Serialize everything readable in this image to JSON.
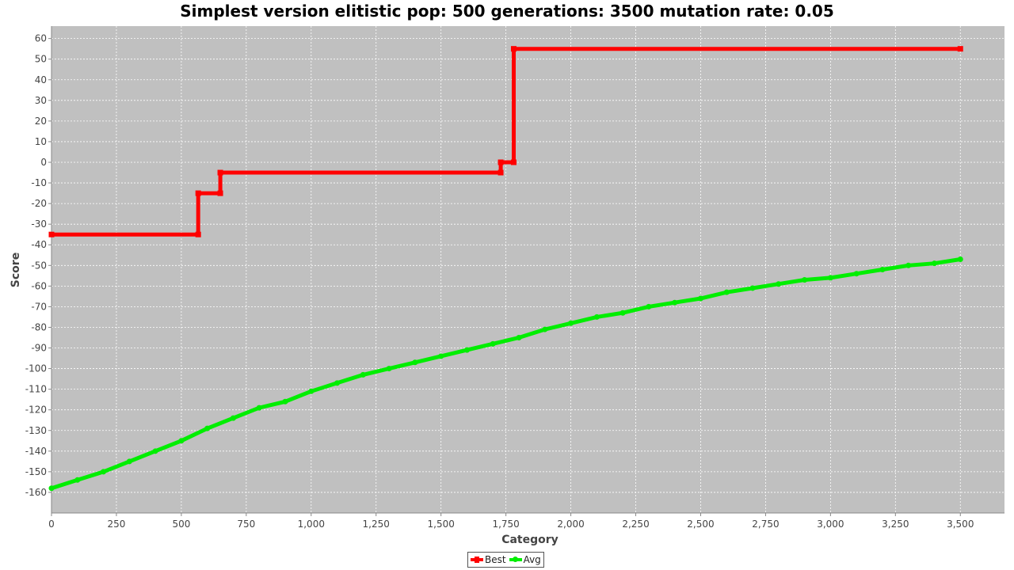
{
  "chart_data": {
    "type": "line",
    "title": "Simplest version elitistic pop: 500 generations: 3500 mutation rate: 0.05",
    "xlabel": "Category",
    "ylabel": "Score",
    "xlim": [
      0,
      3670
    ],
    "ylim": [
      -170,
      66
    ],
    "x_ticks": [
      0,
      250,
      500,
      750,
      1000,
      1250,
      1500,
      1750,
      2000,
      2250,
      2500,
      2750,
      3000,
      3250,
      3500
    ],
    "x_tick_labels": [
      "0",
      "250",
      "500",
      "750",
      "1,000",
      "1,250",
      "1,500",
      "1,750",
      "2,000",
      "2,250",
      "2,500",
      "2,750",
      "3,000",
      "3,250",
      "3,500"
    ],
    "y_ticks": [
      60,
      50,
      40,
      30,
      20,
      10,
      0,
      -10,
      -20,
      -30,
      -40,
      -50,
      -60,
      -70,
      -80,
      -90,
      -100,
      -110,
      -120,
      -130,
      -140,
      -150,
      -160
    ],
    "y_tick_labels": [
      "60",
      "50",
      "40",
      "30",
      "20",
      "10",
      "0",
      "-10",
      "-20",
      "-30",
      "-40",
      "-50",
      "-60",
      "-70",
      "-80",
      "-90",
      "-100",
      "-110",
      "-120",
      "-130",
      "-140",
      "-150",
      "-160"
    ],
    "grid": true,
    "legend_position": "bottom-center",
    "background": "#c0c0c0",
    "series": [
      {
        "name": "Best",
        "color": "#ff0000",
        "marker": "square",
        "points": [
          [
            0,
            -35
          ],
          [
            565,
            -35
          ],
          [
            565,
            -15
          ],
          [
            650,
            -15
          ],
          [
            650,
            -5
          ],
          [
            1730,
            -5
          ],
          [
            1730,
            0
          ],
          [
            1780,
            0
          ],
          [
            1780,
            55
          ],
          [
            3500,
            55
          ]
        ]
      },
      {
        "name": "Avg",
        "color": "#00ee00",
        "marker": "circle",
        "points": [
          [
            0,
            -158
          ],
          [
            100,
            -154
          ],
          [
            200,
            -150
          ],
          [
            300,
            -145
          ],
          [
            400,
            -140
          ],
          [
            500,
            -135
          ],
          [
            600,
            -129
          ],
          [
            700,
            -124
          ],
          [
            800,
            -119
          ],
          [
            900,
            -116
          ],
          [
            1000,
            -111
          ],
          [
            1100,
            -107
          ],
          [
            1200,
            -103
          ],
          [
            1300,
            -100
          ],
          [
            1400,
            -97
          ],
          [
            1500,
            -94
          ],
          [
            1600,
            -91
          ],
          [
            1700,
            -88
          ],
          [
            1800,
            -85
          ],
          [
            1900,
            -81
          ],
          [
            2000,
            -78
          ],
          [
            2100,
            -75
          ],
          [
            2200,
            -73
          ],
          [
            2300,
            -70
          ],
          [
            2400,
            -68
          ],
          [
            2500,
            -66
          ],
          [
            2600,
            -63
          ],
          [
            2700,
            -61
          ],
          [
            2800,
            -59
          ],
          [
            2900,
            -57
          ],
          [
            3000,
            -56
          ],
          [
            3100,
            -54
          ],
          [
            3200,
            -52
          ],
          [
            3300,
            -50
          ],
          [
            3400,
            -49
          ],
          [
            3500,
            -47
          ]
        ]
      }
    ]
  }
}
